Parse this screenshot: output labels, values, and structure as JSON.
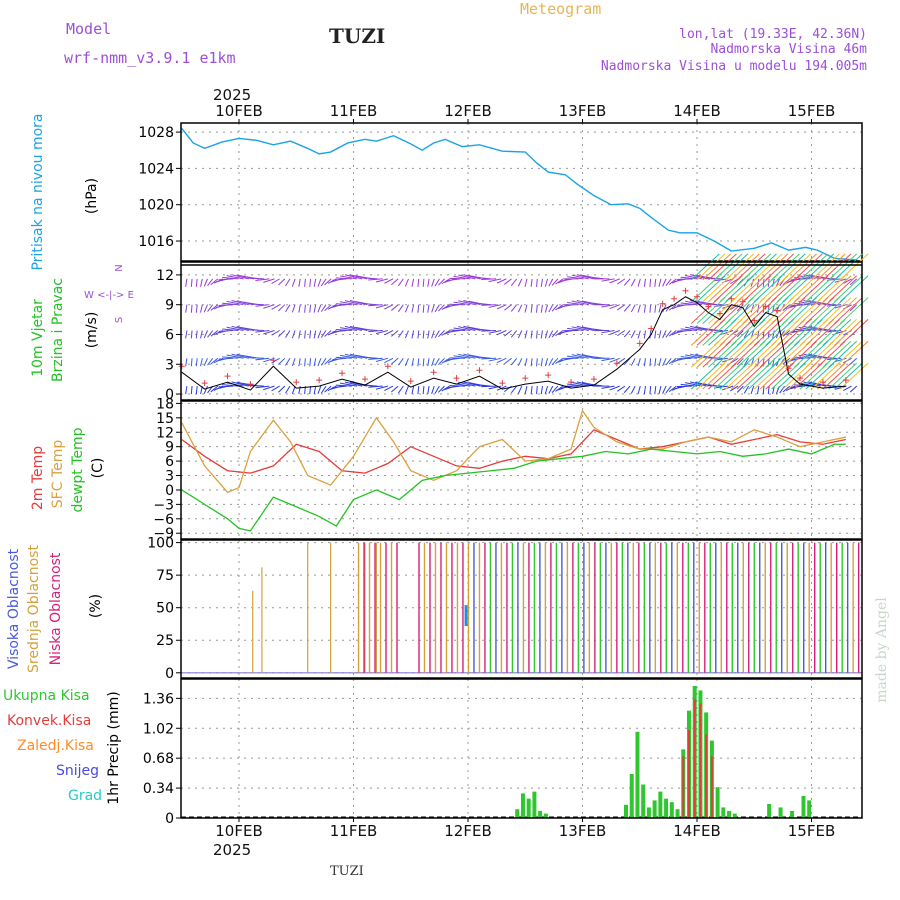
{
  "header": {
    "model_label": "Model",
    "model_name": "wrf-nmm_v3.9.1 e1km",
    "title": "TUZI",
    "chart_kind": "Meteogram",
    "lonlat": "lon,lat (19.33E, 42.36N)",
    "elevation": "Nadmorska Visina 46m",
    "model_elevation": "Nadmorska Visina u modelu 194.005m",
    "year": "2025",
    "watermark": "made by Angel",
    "footer": "TUZI"
  },
  "colors": {
    "pressure": "#1aa3e6",
    "temp2m": "#e63b3b",
    "sfc": "#dca03c",
    "dewpt": "#22c322",
    "high_cloud": "#4a5ad8",
    "mid_cloud": "#d4a13a",
    "low_cloud": "#d6207a",
    "total_precip": "#2fc62f",
    "conv_precip": "#e63b3b",
    "frozen": "#ff8c2a",
    "snow": "#4a4ae0",
    "hail": "#28c8c8",
    "title_purple": "#9d4fd6",
    "orange_title": "#e6b45a"
  },
  "chart_data": [
    {
      "type": "line",
      "ylabel": "Pritisak na nivou mora",
      "unit": "(hPa)",
      "x_ticks": [
        "10FEB",
        "11FEB",
        "12FEB",
        "13FEB",
        "14FEB",
        "15FEB"
      ],
      "y_ticks": [
        1016,
        1020,
        1024,
        1028
      ],
      "ylim": [
        1013.8,
        1029.0
      ],
      "series": [
        {
          "name": "Pritisak na nivou mora",
          "x": [
            0.0,
            0.1,
            0.2,
            0.35,
            0.5,
            0.65,
            0.8,
            0.95,
            1.1,
            1.2,
            1.3,
            1.45,
            1.6,
            1.7,
            1.85,
            2.0,
            2.1,
            2.2,
            2.3,
            2.45,
            2.6,
            2.8,
            3.0,
            3.1,
            3.2,
            3.35,
            3.45,
            3.6,
            3.75,
            3.9,
            4.0,
            4.1,
            4.25,
            4.35,
            4.5,
            4.65,
            4.8,
            5.0,
            5.15,
            5.3,
            5.45,
            5.55,
            5.7,
            5.9
          ],
          "y": [
            1028.4,
            1026.8,
            1026.2,
            1026.9,
            1027.3,
            1027.1,
            1026.6,
            1027.0,
            1026.2,
            1025.6,
            1025.8,
            1026.8,
            1027.2,
            1027.0,
            1027.6,
            1026.7,
            1026.0,
            1026.8,
            1027.2,
            1026.4,
            1026.6,
            1025.9,
            1025.8,
            1024.6,
            1023.6,
            1023.3,
            1022.3,
            1021.0,
            1020.0,
            1020.1,
            1019.6,
            1018.6,
            1017.2,
            1016.9,
            1016.9,
            1016.0,
            1014.9,
            1015.2,
            1015.8,
            1015.0,
            1015.3,
            1015.0,
            1014.1,
            1013.9
          ]
        }
      ]
    },
    {
      "type": "line",
      "ylabel": "10m Vjetar Brzina i Pravac",
      "unit": "(m/s)",
      "compass": "N  W<-|->E  S",
      "y_ticks": [
        0,
        3,
        6,
        9,
        12
      ],
      "ylim": [
        -0.6,
        13.3
      ],
      "series": [
        {
          "name": "Brzina",
          "x": [
            0.0,
            0.2,
            0.4,
            0.6,
            0.8,
            1.0,
            1.2,
            1.4,
            1.6,
            1.8,
            2.0,
            2.2,
            2.4,
            2.6,
            2.8,
            3.0,
            3.2,
            3.4,
            3.6,
            3.8,
            4.0,
            4.1,
            4.2,
            4.3,
            4.4,
            4.5,
            4.6,
            4.7,
            4.8,
            4.9,
            5.0,
            5.1,
            5.2,
            5.3,
            5.4,
            5.6,
            5.8
          ],
          "y": [
            2.2,
            0.5,
            1.2,
            0.4,
            2.8,
            0.6,
            0.8,
            1.5,
            0.9,
            2.2,
            0.7,
            1.6,
            1.0,
            1.8,
            0.5,
            1.0,
            1.3,
            0.6,
            0.9,
            2.5,
            4.5,
            6.0,
            8.5,
            9.0,
            9.8,
            9.2,
            8.2,
            7.5,
            9.0,
            8.7,
            6.8,
            8.2,
            7.8,
            2.0,
            1.0,
            0.6,
            0.8
          ]
        }
      ]
    },
    {
      "type": "line",
      "ylabel": "2m Temp SFC Temp dewpt Temp",
      "unit": "(C)",
      "y_ticks": [
        -9,
        -6,
        -3,
        0,
        3,
        6,
        9,
        12,
        15,
        18
      ],
      "ylim": [
        -10.2,
        18.5
      ],
      "series": [
        {
          "name": "2m Temp",
          "x": [
            0.0,
            0.2,
            0.4,
            0.6,
            0.8,
            1.0,
            1.2,
            1.4,
            1.6,
            1.8,
            2.0,
            2.2,
            2.4,
            2.6,
            2.8,
            3.0,
            3.2,
            3.4,
            3.5,
            3.6,
            3.8,
            4.0,
            4.2,
            4.4,
            4.6,
            4.8,
            5.0,
            5.2,
            5.4,
            5.6,
            5.8
          ],
          "y": [
            10.5,
            7.0,
            4.0,
            3.5,
            5.0,
            9.5,
            8.0,
            4.0,
            3.5,
            5.5,
            9.0,
            7.0,
            5.0,
            4.5,
            6.0,
            7.0,
            6.5,
            7.5,
            10.0,
            12.5,
            10.5,
            8.5,
            9.0,
            10.0,
            11.0,
            9.5,
            10.5,
            11.5,
            10.0,
            9.5,
            10.5
          ]
        },
        {
          "name": "SFC Temp",
          "x": [
            0.0,
            0.2,
            0.4,
            0.5,
            0.6,
            0.8,
            0.95,
            1.1,
            1.3,
            1.5,
            1.7,
            1.85,
            2.0,
            2.2,
            2.4,
            2.6,
            2.8,
            3.0,
            3.2,
            3.4,
            3.5,
            3.6,
            3.8,
            4.0,
            4.2,
            4.4,
            4.6,
            4.8,
            5.0,
            5.2,
            5.4,
            5.6,
            5.8
          ],
          "y": [
            14.0,
            5.0,
            -0.5,
            0.5,
            8.0,
            14.5,
            10.0,
            3.0,
            1.0,
            7.0,
            15.0,
            10.0,
            4.0,
            2.0,
            4.0,
            9.0,
            10.5,
            6.0,
            6.5,
            8.5,
            16.5,
            13.0,
            10.0,
            8.5,
            8.5,
            10.0,
            11.0,
            10.0,
            12.5,
            11.0,
            9.0,
            10.0,
            11.0
          ]
        },
        {
          "name": "dewpt Temp",
          "x": [
            0.0,
            0.2,
            0.4,
            0.5,
            0.6,
            0.8,
            1.0,
            1.2,
            1.35,
            1.5,
            1.7,
            1.9,
            2.1,
            2.3,
            2.5,
            2.7,
            2.9,
            3.1,
            3.3,
            3.5,
            3.7,
            3.9,
            4.1,
            4.3,
            4.5,
            4.7,
            4.9,
            5.1,
            5.3,
            5.5,
            5.7,
            5.8
          ],
          "y": [
            0.0,
            -3.0,
            -6.0,
            -8.0,
            -8.5,
            -1.5,
            -3.5,
            -5.5,
            -7.5,
            -2.0,
            0.0,
            -2.0,
            2.0,
            3.0,
            3.5,
            4.0,
            4.5,
            6.0,
            6.5,
            7.0,
            8.0,
            7.5,
            8.5,
            8.0,
            7.5,
            8.0,
            7.0,
            7.5,
            8.5,
            7.5,
            9.5,
            9.5
          ]
        }
      ]
    },
    {
      "type": "bar",
      "ylabel": "Visoka Oblacnost Srednja Oblacnost Niska Oblacnost",
      "unit": "(%)",
      "y_ticks": [
        0,
        25,
        50,
        75,
        100
      ],
      "ylim": [
        -4,
        102
      ],
      "note": "Cloud cover bars; mostly 0 before 10FEB afternoon, then frequent 100% in all layers",
      "series": [
        {
          "name": "Visoka Oblacnost",
          "start_x": 2.1,
          "end_x": 5.9,
          "value": 100
        },
        {
          "name": "Srednja Oblacnost",
          "sample_x": [
            1.1,
            1.3,
            1.6,
            1.7,
            0.62,
            0.7
          ],
          "sample_y": [
            100,
            100,
            100,
            100,
            63,
            81
          ]
        },
        {
          "name": "Niska Oblacnost",
          "start_x": 1.05,
          "end_x": 5.9,
          "value": 100
        }
      ]
    },
    {
      "type": "bar",
      "ylabel": "1hr Precip",
      "unit": "(mm)",
      "legend": [
        "Ukupna Kisa",
        "Konvek.Kisa",
        "Zaledj.Kisa",
        "Snijeg",
        "Grad"
      ],
      "y_ticks": [
        0,
        0.34,
        0.68,
        1.02,
        1.36
      ],
      "ylim": [
        0,
        1.58
      ],
      "series": [
        {
          "name": "Ukupna Kisa",
          "x": [
            2.93,
            2.98,
            3.03,
            3.08,
            3.13,
            3.18,
            3.88,
            3.93,
            3.98,
            4.03,
            4.08,
            4.13,
            4.18,
            4.23,
            4.28,
            4.33,
            4.38,
            4.43,
            4.48,
            4.53,
            4.58,
            4.63,
            4.68,
            4.73,
            4.78,
            4.83,
            5.13,
            5.23,
            5.33,
            5.43,
            5.48
          ],
          "y": [
            0.1,
            0.28,
            0.22,
            0.3,
            0.08,
            0.05,
            0.15,
            0.5,
            0.98,
            0.38,
            0.12,
            0.2,
            0.3,
            0.22,
            0.18,
            0.1,
            0.78,
            1.22,
            1.5,
            1.45,
            1.2,
            0.88,
            0.35,
            0.12,
            0.08,
            0.05,
            0.16,
            0.12,
            0.08,
            0.25,
            0.2
          ]
        },
        {
          "name": "Konvek.Kisa",
          "x": [
            4.38,
            4.43,
            4.48,
            4.53,
            4.58,
            4.63
          ],
          "y": [
            0.7,
            1.0,
            1.35,
            1.3,
            0.95,
            0.7
          ]
        }
      ]
    }
  ]
}
